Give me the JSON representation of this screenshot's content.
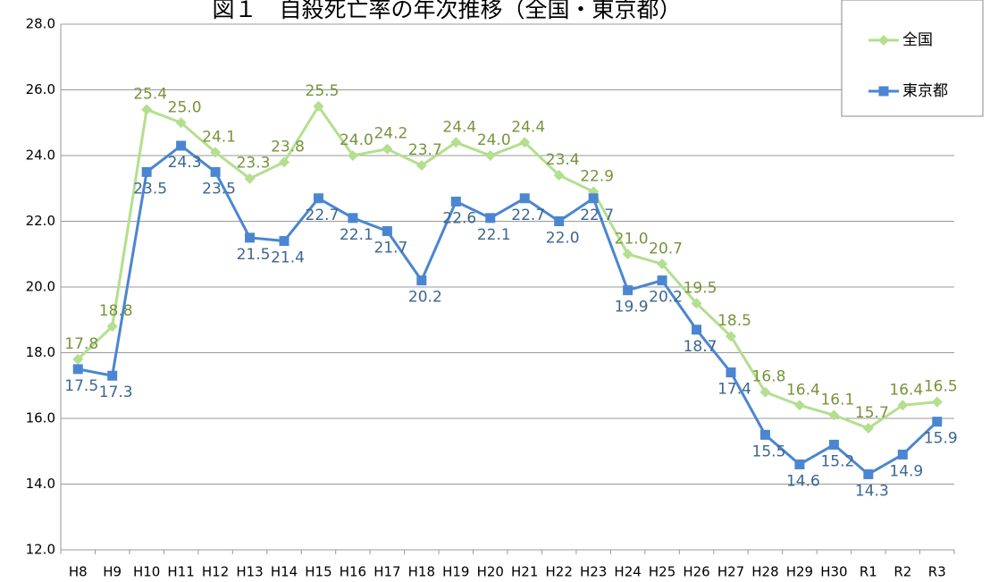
{
  "chart_data": {
    "type": "line",
    "title": "図１　自殺死亡率の年次推移（全国・東京都）",
    "categories": [
      "H8",
      "H9",
      "H10",
      "H11",
      "H12",
      "H13",
      "H14",
      "H15",
      "H16",
      "H17",
      "H18",
      "H19",
      "H20",
      "H21",
      "H22",
      "H23",
      "H24",
      "H25",
      "H26",
      "H27",
      "H28",
      "H29",
      "H30",
      "R1",
      "R2",
      "R3"
    ],
    "series": [
      {
        "name": "全国",
        "color": "#b3df8e",
        "label_color": "#77933c",
        "marker": "diamond",
        "values": [
          17.8,
          18.8,
          25.4,
          25.0,
          24.1,
          23.3,
          23.8,
          25.5,
          24.0,
          24.2,
          23.7,
          24.4,
          24.0,
          24.4,
          23.4,
          22.9,
          21.0,
          20.7,
          19.5,
          18.5,
          16.8,
          16.4,
          16.1,
          15.7,
          16.4,
          16.5
        ],
        "value_labels": [
          "17.8",
          "18.8",
          "25.4",
          "25.0",
          "24.1",
          "23.3",
          "23.8",
          "25.5",
          "24.0",
          "24.2",
          "23.7",
          "24.4",
          "24.0",
          "24.4",
          "23.4",
          "22.9",
          "21.0",
          "20.7",
          "19.5",
          "18.5",
          "16.8",
          "16.4",
          "16.1",
          "15.7",
          "16.4",
          "16.5"
        ]
      },
      {
        "name": "東京都",
        "color": "#4a86d1",
        "label_color": "#3b6691",
        "marker": "square",
        "values": [
          17.5,
          17.3,
          23.5,
          24.3,
          23.5,
          21.5,
          21.4,
          22.7,
          22.1,
          21.7,
          20.2,
          22.6,
          22.1,
          22.7,
          22.0,
          22.7,
          19.9,
          20.2,
          18.7,
          17.4,
          15.5,
          14.6,
          15.2,
          14.3,
          14.9,
          15.9
        ],
        "value_labels": [
          "17.5",
          "17.3",
          "23.5",
          "24.3",
          "23.5",
          "21.5",
          "21.4",
          "22.7",
          "22.1",
          "21.7",
          "20.2",
          "22.6",
          "22.1",
          "22.7",
          "22.0",
          "22.7",
          "19.9",
          "20.2",
          "18.7",
          "17.4",
          "15.5",
          "14.6",
          "15.2",
          "14.3",
          "14.9",
          "15.9"
        ]
      }
    ],
    "ylim": [
      12,
      28
    ],
    "yticks": [
      {
        "value": 12,
        "label": "12.0"
      },
      {
        "value": 14,
        "label": "14.0"
      },
      {
        "value": 16,
        "label": "16.0"
      },
      {
        "value": 18,
        "label": "18.0"
      },
      {
        "value": 20,
        "label": "20.0"
      },
      {
        "value": 22,
        "label": "22.0"
      },
      {
        "value": 24,
        "label": "24.0"
      },
      {
        "value": 26,
        "label": "26.0"
      },
      {
        "value": 28,
        "label": "28.0"
      }
    ],
    "grid": true,
    "legend": "top-right"
  }
}
